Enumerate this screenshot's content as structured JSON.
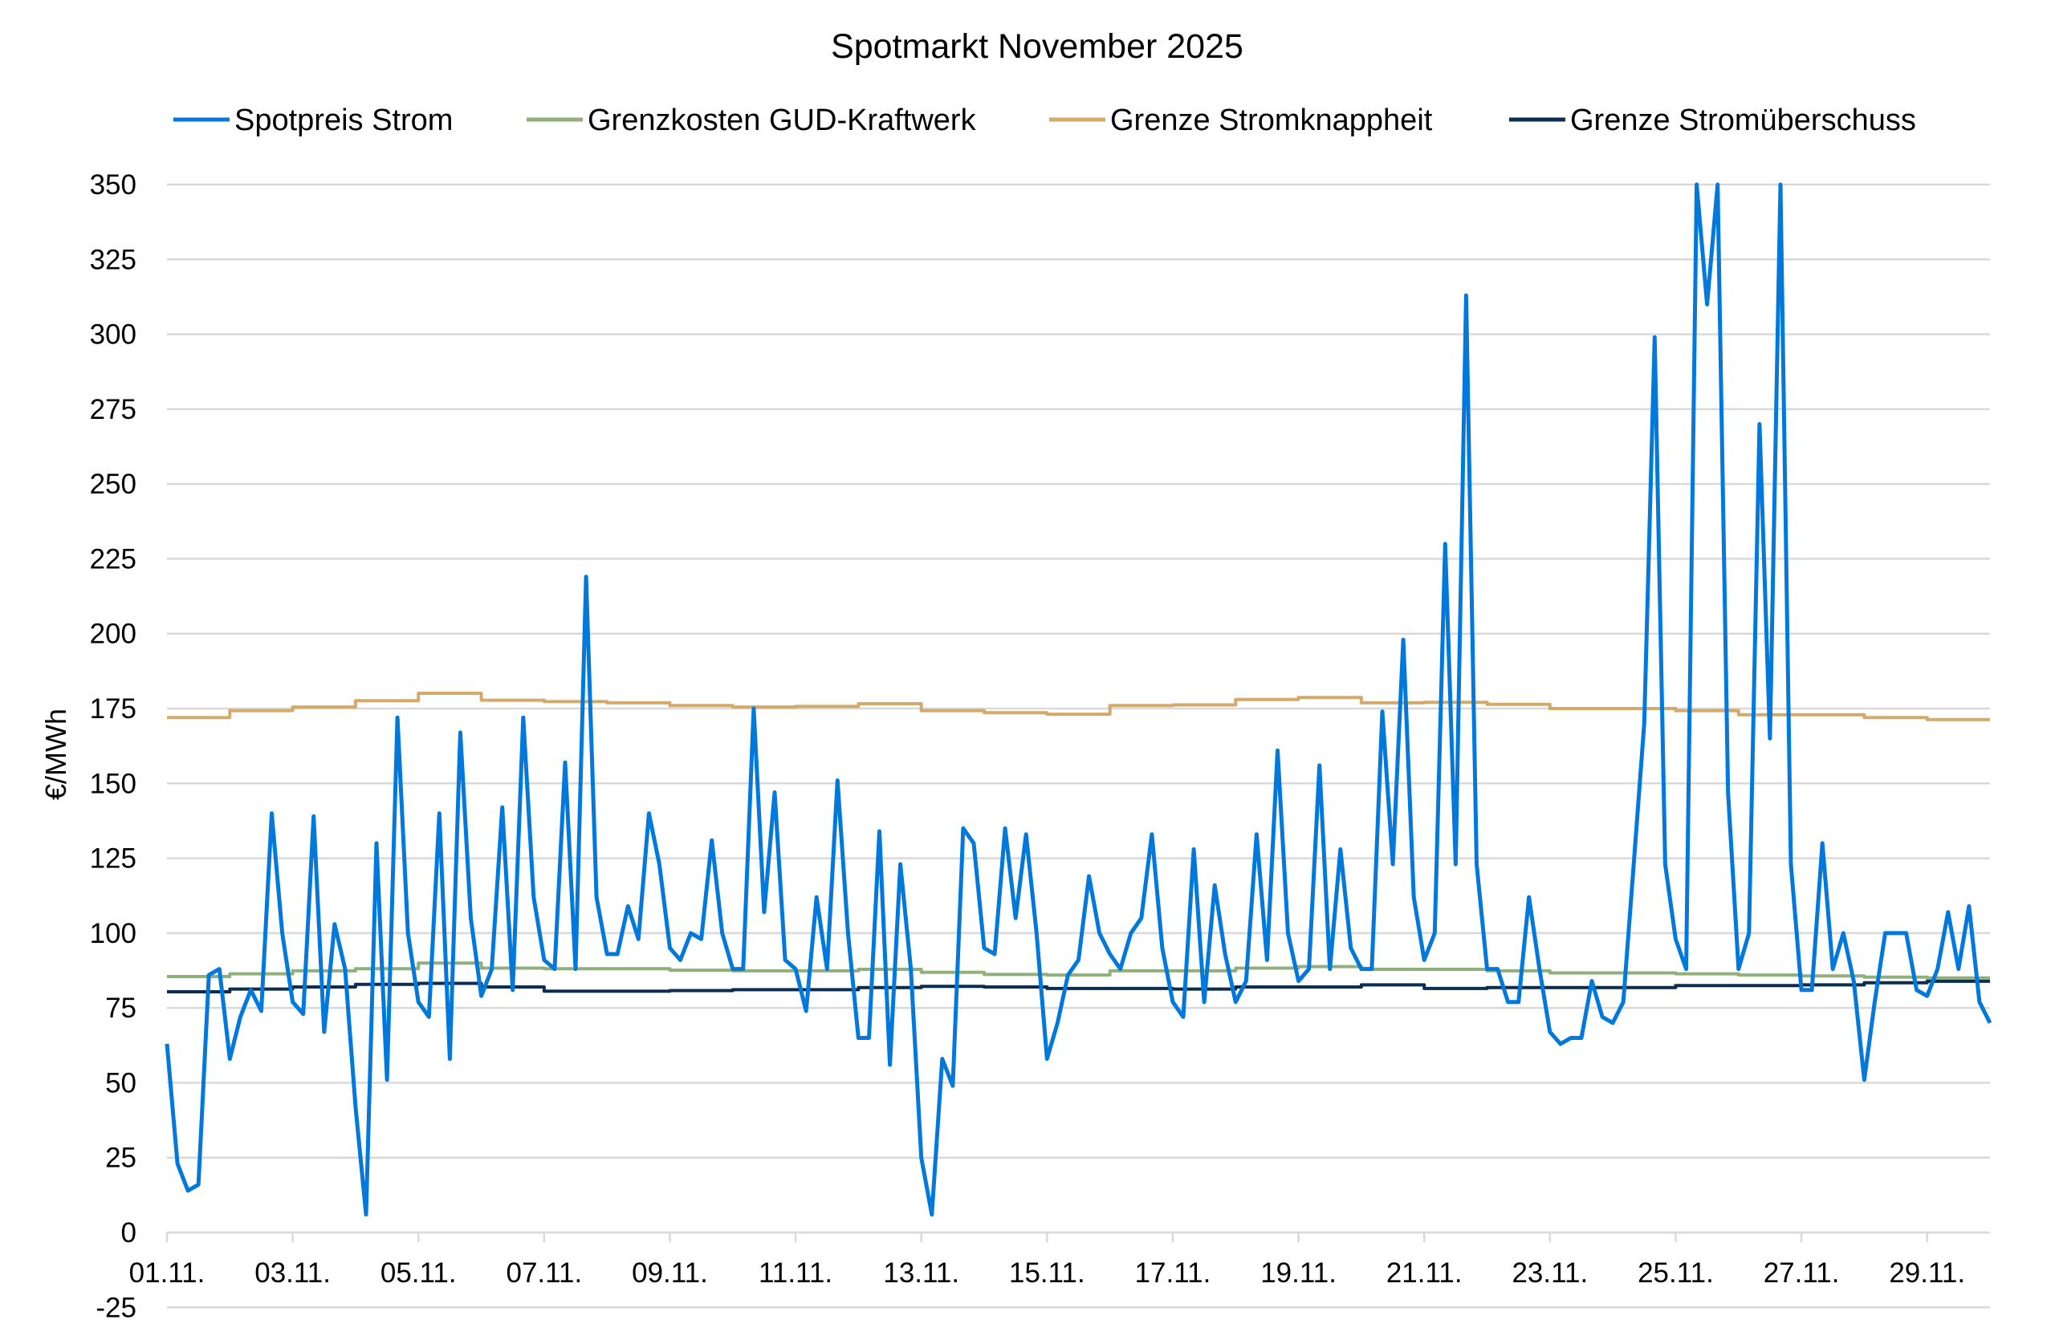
{
  "chart_data": {
    "type": "line",
    "title": "Spotmarkt November 2025",
    "ylabel": "€/MWh",
    "xlabel": "",
    "ylim": [
      -25,
      350
    ],
    "y_ticks": [
      "350",
      "325",
      "300",
      "275",
      "250",
      "225",
      "200",
      "175",
      "150",
      "125",
      "100",
      "75",
      "50",
      "25",
      "0",
      "-25"
    ],
    "x_ticks": [
      "01.11.",
      "03.11.",
      "05.11.",
      "07.11.",
      "09.11.",
      "11.11.",
      "13.11.",
      "15.11.",
      "17.11.",
      "19.11.",
      "21.11.",
      "23.11.",
      "25.11.",
      "27.11.",
      "29.11."
    ],
    "x_range": [
      "01.11. 00:00",
      "29.11. 24:00"
    ],
    "grid": "horizontal",
    "legend_position": "top",
    "series": [
      {
        "name": "Spotpreis Strom",
        "color": "#0078dc",
        "x_start": "01.11. 00:00",
        "interval_hours": 4,
        "values": [
          63,
          23,
          14,
          16,
          86,
          88,
          58,
          72,
          81,
          74,
          140,
          100,
          77,
          73,
          139,
          67,
          103,
          88,
          42,
          6,
          130,
          51,
          172,
          100,
          77,
          72,
          140,
          58,
          167,
          105,
          79,
          88,
          142,
          81,
          172,
          112,
          91,
          88,
          157,
          88,
          219,
          112,
          93,
          93,
          109,
          98,
          140,
          123,
          95,
          91,
          100,
          98,
          131,
          100,
          88,
          88,
          175,
          107,
          147,
          91,
          88,
          74,
          112,
          88,
          151,
          100,
          65,
          65,
          134,
          56,
          123,
          88,
          25,
          6,
          58,
          49,
          135,
          130,
          95,
          93,
          135,
          105,
          133,
          100,
          58,
          70,
          86,
          91,
          119,
          100,
          93,
          88,
          100,
          105,
          133,
          95,
          77,
          72,
          128,
          77,
          116,
          93,
          77,
          84,
          133,
          91,
          161,
          100,
          84,
          88,
          156,
          88,
          128,
          95,
          88,
          88,
          174,
          123,
          198,
          112,
          91,
          100,
          230,
          123,
          313,
          123,
          88,
          88,
          77,
          77,
          112,
          88,
          67,
          63,
          65,
          65,
          84,
          72,
          70,
          77,
          123,
          170,
          299,
          123,
          98,
          88,
          350,
          310,
          350,
          147,
          88,
          100,
          270,
          165,
          350,
          123,
          81,
          81,
          130,
          88,
          100,
          84,
          51,
          77,
          100,
          100,
          100,
          81,
          79,
          88,
          107,
          88,
          109,
          77,
          70
        ]
      },
      {
        "name": "Grenzkosten GUD-Kraftwerk",
        "color": "#8fb07a",
        "x_start": "01.11.",
        "interval_hours": 24,
        "values": [
          85.5,
          86.4,
          87.4,
          88.1,
          90,
          88.3,
          88.1,
          88.1,
          87.6,
          87.4,
          87.4,
          87.9,
          86.9,
          86.2,
          86,
          87.4,
          87.4,
          88.3,
          88.8,
          87.9,
          87.9,
          87.4,
          86.7,
          86.7,
          86.4,
          86,
          85.7,
          85.3,
          85
        ]
      },
      {
        "name": "Grenze Stromknappheit",
        "color": "#d4aa6c",
        "x_start": "01.11.",
        "interval_hours": 24,
        "values": [
          172,
          174.3,
          175.5,
          177.6,
          180.1,
          177.8,
          177.3,
          176.9,
          176,
          175.5,
          175.7,
          176.6,
          174.3,
          173.6,
          173.1,
          176,
          176.2,
          178,
          178.7,
          176.9,
          177.1,
          176.4,
          175,
          175,
          174.3,
          172.9,
          172.9,
          172,
          171.3
        ]
      },
      {
        "name": "Grenze Stromüberschuss",
        "color": "#0b2d4f",
        "x_start": "01.11.",
        "interval_hours": 24,
        "values": [
          80.4,
          81.3,
          82,
          82.9,
          83.2,
          82,
          80.6,
          80.6,
          80.8,
          81.1,
          81.1,
          81.8,
          82.2,
          82,
          81.5,
          81.5,
          81.3,
          82,
          82,
          82.7,
          81.5,
          81.8,
          81.8,
          81.8,
          82.5,
          82.5,
          82.7,
          83.4,
          83.9
        ]
      }
    ]
  }
}
